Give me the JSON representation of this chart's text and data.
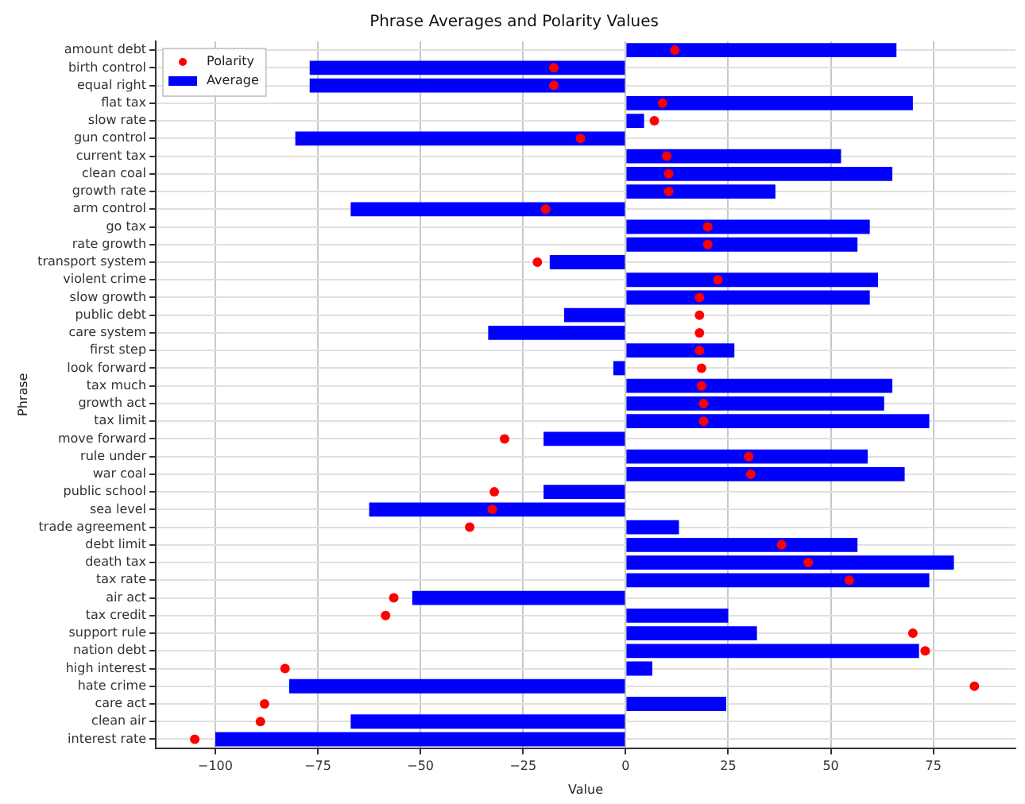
{
  "chart_data": {
    "type": "bar",
    "orientation": "horizontal",
    "title": "Phrase Averages and Polarity Values",
    "xlabel": "Value",
    "ylabel": "Phrase",
    "categories": [
      "amount debt",
      "birth control",
      "equal right",
      "flat tax",
      "slow rate",
      "gun control",
      "current tax",
      "clean coal",
      "growth rate",
      "arm control",
      "go tax",
      "rate growth",
      "transport system",
      "violent crime",
      "slow growth",
      "public debt",
      "care system",
      "first step",
      "look forward",
      "tax much",
      "growth act",
      "tax limit",
      "move forward",
      "rule under",
      "war coal",
      "public school",
      "sea level",
      "trade agreement",
      "debt limit",
      "death tax",
      "tax rate",
      "air act",
      "tax credit",
      "support rule",
      "nation debt",
      "high interest",
      "hate crime",
      "care act",
      "clean air",
      "interest rate"
    ],
    "series": [
      {
        "name": "Polarity",
        "type": "scatter",
        "color": "#ff0000",
        "x": [
          "amount debt",
          "birth control",
          "equal right",
          "flat tax",
          "slow rate",
          "gun control",
          "current tax",
          "clean coal",
          "growth rate",
          "arm control",
          "go tax",
          "rate growth",
          "transport system",
          "violent crime",
          "slow growth",
          "public debt",
          "care system",
          "first step",
          "look forward",
          "tax much",
          "growth act",
          "tax limit",
          "move forward",
          "rule under",
          "war coal",
          "public school",
          "sea level",
          "trade agreement",
          "debt limit",
          "death tax",
          "tax rate",
          "air act",
          "tax credit",
          "support rule",
          "nation debt",
          "high interest",
          "hate crime",
          "care act",
          "clean air",
          "interest rate"
        ],
        "values": [
          12,
          -17.5,
          -17.5,
          9,
          7,
          -11,
          10,
          10.5,
          10.5,
          -19.5,
          20,
          20,
          -21.5,
          22.5,
          18,
          18,
          18,
          18,
          18.5,
          18.5,
          19,
          19,
          -29.5,
          30,
          30.5,
          -32,
          -32.5,
          -38,
          38,
          44.5,
          54.5,
          -56.5,
          -58.5,
          70,
          73,
          -83,
          85,
          -88,
          -89,
          -105
        ]
      },
      {
        "name": "Average",
        "type": "bar",
        "color": "#0000ff",
        "values": [
          66,
          -77,
          -77,
          70,
          4.5,
          -80.5,
          52.5,
          65,
          36.5,
          -67,
          59.5,
          56.5,
          -18.5,
          61.5,
          59.5,
          -15,
          -33.5,
          26.5,
          -3,
          65,
          63,
          74,
          -20,
          59,
          68,
          -20,
          -62.5,
          13,
          56.5,
          80,
          74,
          -52,
          25,
          32,
          71.5,
          6.5,
          -82,
          24.5,
          -67,
          -100
        ]
      }
    ],
    "xlim": [
      -114.5,
      95
    ],
    "xticks": [
      -100,
      -75,
      -50,
      -25,
      0,
      25,
      50,
      75
    ],
    "grid": true,
    "legend": "top left",
    "marker": "circle"
  }
}
